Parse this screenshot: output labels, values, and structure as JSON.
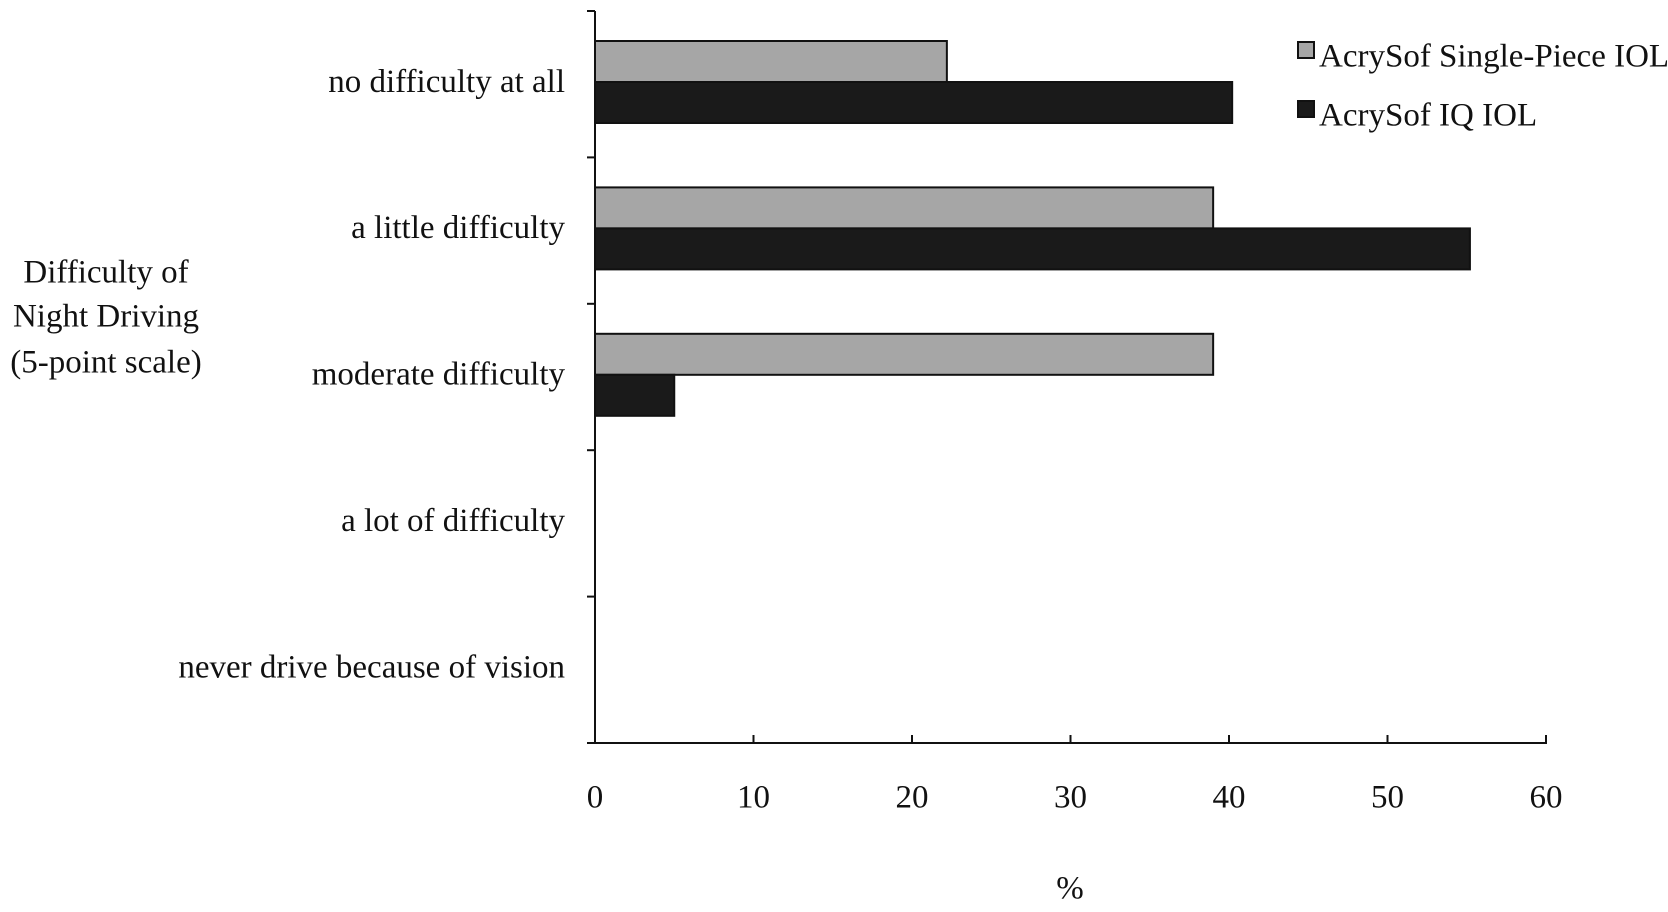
{
  "chart_data": {
    "type": "hbar",
    "y_label": [
      "Difficulty of",
      "Night Driving",
      "(5-point scale)"
    ],
    "x_label": "%",
    "categories": [
      "no difficulty at all",
      "a little difficulty",
      "moderate difficulty",
      "a lot of difficulty",
      "never drive because of vision"
    ],
    "series": [
      {
        "name": "AcrySof Single-Piece IOL",
        "color": "#a6a6a6",
        "values": [
          22.2,
          39,
          39,
          0,
          0
        ]
      },
      {
        "name": "AcrySof IQ IOL",
        "color": "#1a1a1a",
        "values": [
          40.2,
          55.2,
          5,
          0,
          0
        ]
      }
    ],
    "xlim": [
      0,
      60
    ],
    "xticks": [
      0,
      10,
      20,
      30,
      40,
      50,
      60
    ],
    "legend": "top-right"
  }
}
